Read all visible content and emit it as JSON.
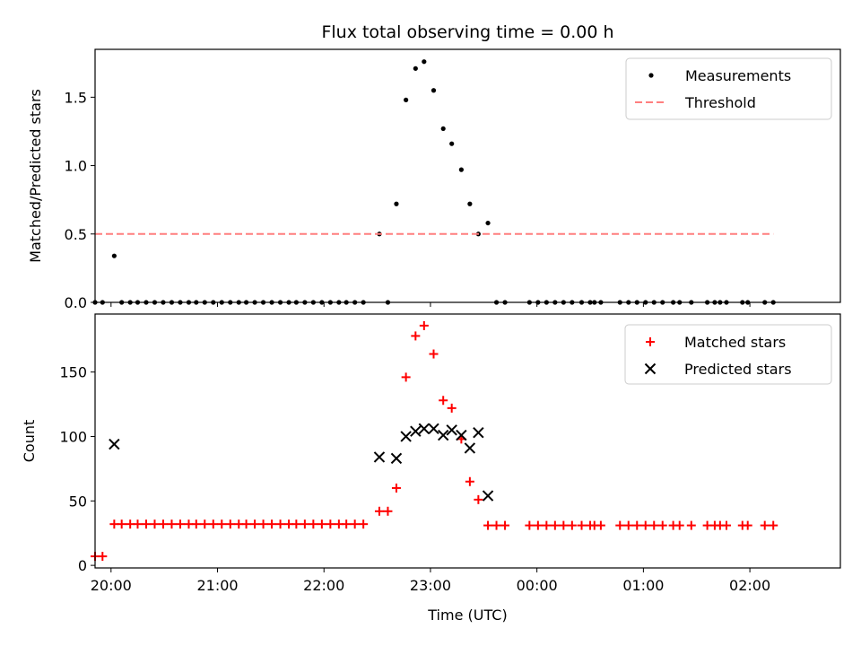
{
  "chart_data": [
    {
      "type": "scatter",
      "title": "Flux total observing time = 0.00 h",
      "ylabel": "Matched/Predicted stars",
      "xlabel": "",
      "x_ticks": [
        "20:00",
        "21:00",
        "22:00",
        "23:00",
        "00:00",
        "01:00",
        "02:00"
      ],
      "xlim": [
        -0.15,
        6.85
      ],
      "ylim": [
        0,
        1.85
      ],
      "y_ticks": [
        "0.0",
        "0.5",
        "1.0",
        "1.5"
      ],
      "y_tick_values": [
        0,
        0.5,
        1.0,
        1.5
      ],
      "legend_position": "top-right",
      "series": [
        {
          "name": "Measurements",
          "marker": "dot",
          "color": "#000000",
          "points": [
            [
              -0.15,
              0
            ],
            [
              -0.08,
              0
            ],
            [
              0.03,
              0.34
            ],
            [
              0.1,
              0
            ],
            [
              0.18,
              0
            ],
            [
              0.25,
              0
            ],
            [
              0.33,
              0
            ],
            [
              0.41,
              0
            ],
            [
              0.49,
              0
            ],
            [
              0.57,
              0
            ],
            [
              0.65,
              0
            ],
            [
              0.73,
              0
            ],
            [
              0.8,
              0
            ],
            [
              0.88,
              0
            ],
            [
              0.96,
              0
            ],
            [
              1.04,
              0
            ],
            [
              1.12,
              0
            ],
            [
              1.2,
              0
            ],
            [
              1.27,
              0
            ],
            [
              1.35,
              0
            ],
            [
              1.43,
              0
            ],
            [
              1.51,
              0
            ],
            [
              1.59,
              0
            ],
            [
              1.67,
              0
            ],
            [
              1.74,
              0
            ],
            [
              1.82,
              0
            ],
            [
              1.9,
              0
            ],
            [
              1.98,
              0
            ],
            [
              2.06,
              0
            ],
            [
              2.14,
              0
            ],
            [
              2.21,
              0
            ],
            [
              2.29,
              0
            ],
            [
              2.37,
              0
            ],
            [
              2.52,
              0.5
            ],
            [
              2.6,
              0
            ],
            [
              2.68,
              0.72
            ],
            [
              2.77,
              1.48
            ],
            [
              2.86,
              1.71
            ],
            [
              2.94,
              1.76
            ],
            [
              3.03,
              1.55
            ],
            [
              3.12,
              1.27
            ],
            [
              3.2,
              1.16
            ],
            [
              3.29,
              0.97
            ],
            [
              3.37,
              0.72
            ],
            [
              3.45,
              0.5
            ],
            [
              3.54,
              0.58
            ],
            [
              3.62,
              0
            ],
            [
              3.7,
              0
            ],
            [
              3.93,
              0
            ],
            [
              4.01,
              0
            ],
            [
              4.09,
              0
            ],
            [
              4.17,
              0
            ],
            [
              4.25,
              0
            ],
            [
              4.33,
              0
            ],
            [
              4.42,
              0
            ],
            [
              4.5,
              0
            ],
            [
              4.54,
              0
            ],
            [
              4.6,
              0
            ],
            [
              4.78,
              0
            ],
            [
              4.86,
              0
            ],
            [
              4.94,
              0
            ],
            [
              5.02,
              0
            ],
            [
              5.1,
              0
            ],
            [
              5.18,
              0
            ],
            [
              5.28,
              0
            ],
            [
              5.34,
              0
            ],
            [
              5.45,
              0
            ],
            [
              5.6,
              0
            ],
            [
              5.67,
              0
            ],
            [
              5.72,
              0
            ],
            [
              5.78,
              0
            ],
            [
              5.93,
              0
            ],
            [
              5.98,
              0
            ],
            [
              6.14,
              0
            ],
            [
              6.22,
              0
            ]
          ]
        },
        {
          "name": "Threshold",
          "marker": "dashed-line",
          "color": "#ff7f7f",
          "points": [
            [
              -0.15,
              0.5
            ],
            [
              6.22,
              0.5
            ]
          ]
        }
      ]
    },
    {
      "type": "scatter",
      "title": "",
      "ylabel": "Count",
      "xlabel": "Time (UTC)",
      "x_ticks": [
        "20:00",
        "21:00",
        "22:00",
        "23:00",
        "00:00",
        "01:00",
        "02:00"
      ],
      "xlim": [
        -0.15,
        6.85
      ],
      "ylim": [
        -2,
        195
      ],
      "y_ticks": [
        "0",
        "50",
        "100",
        "150"
      ],
      "y_tick_values": [
        0,
        50,
        100,
        150
      ],
      "legend_position": "top-right",
      "series": [
        {
          "name": "Matched stars",
          "marker": "plus",
          "color": "#ff0000",
          "points": [
            [
              -0.15,
              7
            ],
            [
              -0.08,
              7
            ],
            [
              0.03,
              32
            ],
            [
              0.1,
              32
            ],
            [
              0.18,
              32
            ],
            [
              0.25,
              32
            ],
            [
              0.33,
              32
            ],
            [
              0.41,
              32
            ],
            [
              0.49,
              32
            ],
            [
              0.57,
              32
            ],
            [
              0.65,
              32
            ],
            [
              0.73,
              32
            ],
            [
              0.8,
              32
            ],
            [
              0.88,
              32
            ],
            [
              0.96,
              32
            ],
            [
              1.04,
              32
            ],
            [
              1.12,
              32
            ],
            [
              1.2,
              32
            ],
            [
              1.27,
              32
            ],
            [
              1.35,
              32
            ],
            [
              1.43,
              32
            ],
            [
              1.51,
              32
            ],
            [
              1.59,
              32
            ],
            [
              1.67,
              32
            ],
            [
              1.74,
              32
            ],
            [
              1.82,
              32
            ],
            [
              1.9,
              32
            ],
            [
              1.98,
              32
            ],
            [
              2.06,
              32
            ],
            [
              2.14,
              32
            ],
            [
              2.21,
              32
            ],
            [
              2.29,
              32
            ],
            [
              2.37,
              32
            ],
            [
              2.52,
              42
            ],
            [
              2.6,
              42
            ],
            [
              2.68,
              60
            ],
            [
              2.77,
              146
            ],
            [
              2.86,
              178
            ],
            [
              2.94,
              186
            ],
            [
              3.03,
              164
            ],
            [
              3.12,
              128
            ],
            [
              3.2,
              122
            ],
            [
              3.29,
              98
            ],
            [
              3.37,
              65
            ],
            [
              3.45,
              51
            ],
            [
              3.54,
              31
            ],
            [
              3.62,
              31
            ],
            [
              3.7,
              31
            ],
            [
              3.93,
              31
            ],
            [
              4.01,
              31
            ],
            [
              4.09,
              31
            ],
            [
              4.17,
              31
            ],
            [
              4.25,
              31
            ],
            [
              4.33,
              31
            ],
            [
              4.42,
              31
            ],
            [
              4.5,
              31
            ],
            [
              4.54,
              31
            ],
            [
              4.6,
              31
            ],
            [
              4.78,
              31
            ],
            [
              4.86,
              31
            ],
            [
              4.94,
              31
            ],
            [
              5.02,
              31
            ],
            [
              5.1,
              31
            ],
            [
              5.18,
              31
            ],
            [
              5.28,
              31
            ],
            [
              5.34,
              31
            ],
            [
              5.45,
              31
            ],
            [
              5.6,
              31
            ],
            [
              5.67,
              31
            ],
            [
              5.72,
              31
            ],
            [
              5.78,
              31
            ],
            [
              5.93,
              31
            ],
            [
              5.98,
              31
            ],
            [
              6.14,
              31
            ],
            [
              6.22,
              31
            ]
          ]
        },
        {
          "name": "Predicted stars",
          "marker": "x",
          "color": "#000000",
          "points": [
            [
              0.03,
              94
            ],
            [
              2.52,
              84
            ],
            [
              2.68,
              83
            ],
            [
              2.77,
              100
            ],
            [
              2.86,
              104
            ],
            [
              2.94,
              106
            ],
            [
              3.03,
              106
            ],
            [
              3.12,
              101
            ],
            [
              3.2,
              105
            ],
            [
              3.29,
              101
            ],
            [
              3.37,
              91
            ],
            [
              3.45,
              103
            ],
            [
              3.54,
              54
            ]
          ]
        }
      ]
    }
  ]
}
